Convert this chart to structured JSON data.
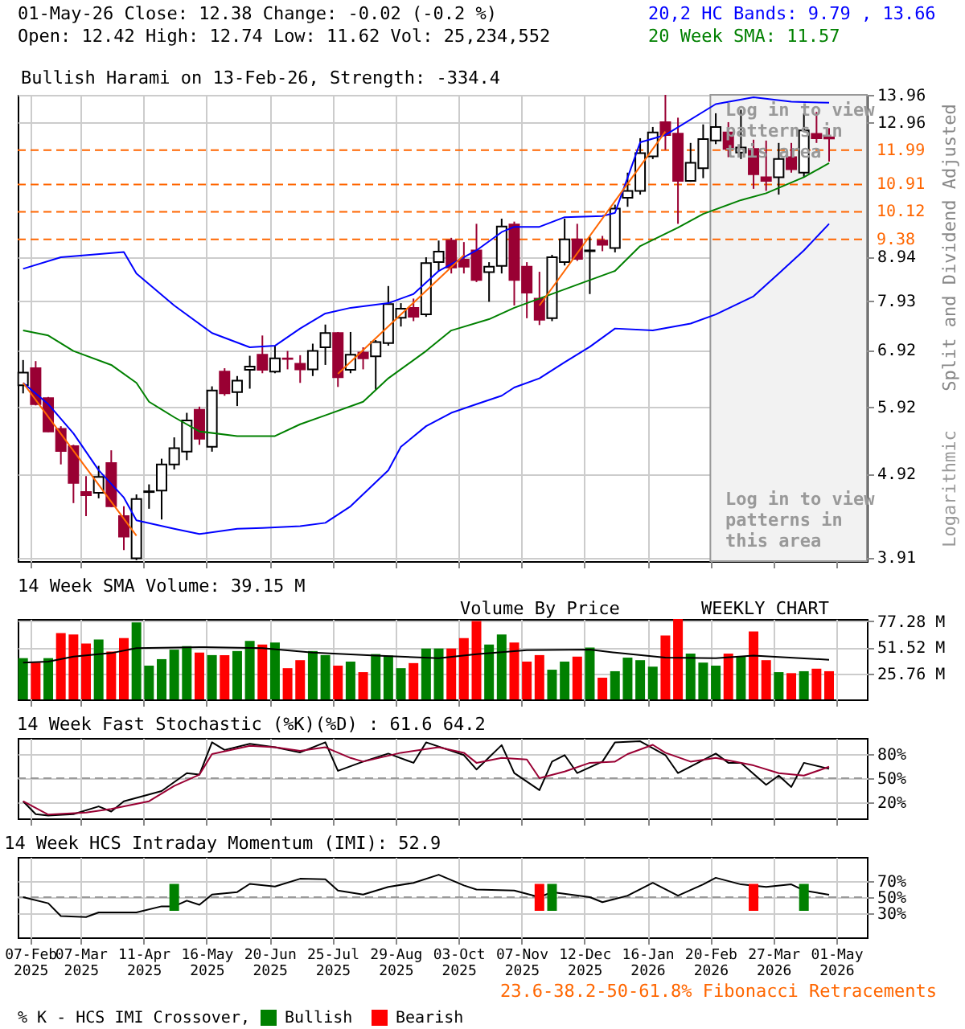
{
  "chart_data": [
    {
      "type": "candlestick",
      "title": "01-May-26   Close: 12.38   Change: -0.02 (-0.2 %)",
      "subtitle": "Open: 12.42   High: 12.74   Low: 11.62   Vol: 25,234,552",
      "ylabel": "Split and Dividend Adjusted",
      "annotations": [
        "20,2 HC Bands: 9.79 , 13.66",
        "20 Week SMA: 11.57",
        "Bullish Harami on 13-Feb-26, Strength: -334.4",
        "Log in to view patterns in this area",
        "Log in to view patterns in this area",
        "Logarithmic"
      ],
      "x": [
        "2025-02-03",
        "2025-02-10",
        "2025-02-17",
        "2025-02-24",
        "2025-03-03",
        "2025-03-10",
        "2025-03-17",
        "2025-03-24",
        "2025-03-31",
        "2025-04-07",
        "2025-04-14",
        "2025-04-21",
        "2025-04-28",
        "2025-05-05",
        "2025-05-12",
        "2025-05-19",
        "2025-05-26",
        "2025-06-02",
        "2025-06-09",
        "2025-06-16",
        "2025-06-23",
        "2025-06-30",
        "2025-07-07",
        "2025-07-14",
        "2025-07-21",
        "2025-07-28",
        "2025-08-04",
        "2025-08-11",
        "2025-08-18",
        "2025-08-25",
        "2025-09-01",
        "2025-09-08",
        "2025-09-15",
        "2025-09-22",
        "2025-09-29",
        "2025-10-06",
        "2025-10-13",
        "2025-10-20",
        "2025-10-27",
        "2025-11-03",
        "2025-11-10",
        "2025-11-17",
        "2025-11-24",
        "2025-12-01",
        "2025-12-08",
        "2025-12-15",
        "2025-12-22",
        "2025-12-29",
        "2026-01-05",
        "2026-01-12",
        "2026-01-19",
        "2026-01-26",
        "2026-02-02",
        "2026-02-09",
        "2026-02-16",
        "2026-02-23",
        "2026-03-02",
        "2026-03-09",
        "2026-03-16",
        "2026-03-23",
        "2026-03-30",
        "2026-04-06",
        "2026-04-13",
        "2026-04-20",
        "2026-04-27"
      ],
      "ohlc": [
        [
          6.28,
          6.73,
          6.14,
          6.5
        ],
        [
          6.58,
          6.71,
          5.94,
          5.96
        ],
        [
          6.06,
          6.08,
          5.52,
          5.53
        ],
        [
          5.57,
          5.61,
          5.05,
          5.24
        ],
        [
          5.31,
          5.33,
          4.54,
          4.8
        ],
        [
          4.68,
          4.89,
          4.38,
          4.64
        ],
        [
          4.67,
          5.03,
          4.6,
          4.88
        ],
        [
          5.07,
          5.25,
          4.49,
          4.5
        ],
        [
          4.38,
          4.5,
          3.99,
          4.14
        ],
        [
          3.9,
          4.65,
          3.88,
          4.59
        ],
        [
          4.68,
          4.78,
          4.47,
          4.69
        ],
        [
          4.7,
          5.13,
          4.34,
          5.05
        ],
        [
          5.05,
          5.44,
          4.98,
          5.28
        ],
        [
          5.23,
          5.82,
          5.11,
          5.7
        ],
        [
          5.87,
          5.92,
          5.33,
          5.42
        ],
        [
          5.3,
          6.26,
          5.23,
          6.19
        ],
        [
          6.52,
          6.58,
          6.1,
          6.14
        ],
        [
          6.16,
          6.44,
          5.93,
          6.36
        ],
        [
          6.55,
          6.81,
          6.22,
          6.61
        ],
        [
          6.83,
          7.2,
          6.49,
          6.55
        ],
        [
          6.52,
          7.0,
          6.49,
          6.76
        ],
        [
          6.76,
          6.9,
          6.56,
          6.75
        ],
        [
          6.66,
          6.82,
          6.32,
          6.56
        ],
        [
          6.56,
          7.04,
          6.44,
          6.9
        ],
        [
          6.97,
          7.42,
          6.64,
          7.25
        ],
        [
          7.25,
          7.27,
          6.25,
          6.42
        ],
        [
          6.55,
          7.27,
          6.49,
          6.83
        ],
        [
          6.87,
          6.97,
          6.56,
          6.76
        ],
        [
          6.8,
          7.11,
          6.2,
          7.07
        ],
        [
          7.05,
          8.25,
          7.0,
          7.85
        ],
        [
          7.56,
          7.87,
          7.38,
          7.75
        ],
        [
          7.77,
          7.97,
          7.49,
          7.58
        ],
        [
          7.63,
          8.93,
          7.58,
          8.79
        ],
        [
          8.81,
          9.35,
          8.6,
          9.07
        ],
        [
          9.35,
          9.42,
          8.54,
          8.68
        ],
        [
          8.87,
          9.31,
          8.54,
          8.7
        ],
        [
          9.1,
          9.79,
          8.34,
          8.39
        ],
        [
          8.57,
          8.81,
          7.9,
          8.7
        ],
        [
          8.72,
          9.93,
          8.54,
          9.72
        ],
        [
          9.77,
          9.85,
          7.82,
          8.39
        ],
        [
          8.7,
          8.81,
          7.55,
          8.1
        ],
        [
          7.97,
          8.58,
          7.41,
          7.52
        ],
        [
          7.55,
          8.99,
          7.49,
          8.93
        ],
        [
          8.81,
          9.93,
          8.73,
          9.38
        ],
        [
          9.38,
          9.79,
          8.84,
          8.89
        ],
        [
          9.08,
          9.45,
          8.07,
          9.1
        ],
        [
          9.35,
          9.47,
          9.08,
          9.24
        ],
        [
          9.16,
          10.32,
          9.05,
          10.21
        ],
        [
          10.52,
          11.27,
          10.26,
          10.72
        ],
        [
          10.72,
          12.39,
          10.61,
          11.89
        ],
        [
          11.79,
          12.78,
          11.7,
          12.59
        ],
        [
          12.95,
          13.96,
          12.0,
          12.5
        ],
        [
          12.55,
          13.11,
          9.79,
          11.02
        ],
        [
          11.02,
          12.23,
          10.99,
          11.58
        ],
        [
          11.41,
          12.87,
          11.1,
          12.36
        ],
        [
          12.31,
          13.27,
          12.19,
          12.78
        ],
        [
          12.59,
          12.95,
          11.76,
          12.03
        ],
        [
          11.91,
          13.4,
          11.7,
          12.08
        ],
        [
          12.03,
          12.34,
          10.78,
          11.22
        ],
        [
          11.13,
          12.31,
          10.72,
          11.02
        ],
        [
          11.13,
          12.23,
          10.61,
          11.7
        ],
        [
          11.76,
          12.23,
          11.27,
          11.38
        ],
        [
          11.27,
          13.27,
          11.13,
          12.66
        ],
        [
          12.54,
          13.32,
          12.23,
          12.39
        ],
        [
          12.42,
          12.74,
          11.62,
          12.38
        ]
      ],
      "series": [
        {
          "type": "line",
          "color": "#0000ff",
          "x": [
            "2025-02-03",
            "2025-02-24",
            "2025-03-31",
            "2025-04-07",
            "2025-04-28",
            "2025-05-19",
            "2025-06-09",
            "2025-06-23",
            "2025-07-07",
            "2025-07-21",
            "2025-08-04",
            "2025-08-25",
            "2025-09-08",
            "2025-09-22",
            "2025-10-13",
            "2025-10-27",
            "2025-11-03",
            "2025-11-17",
            "2025-12-01",
            "2025-12-22",
            "2025-12-29",
            "2026-01-12",
            "2026-01-26",
            "2026-02-23",
            "2026-03-16",
            "2026-04-06",
            "2026-04-27"
          ],
          "values": [
            8.65,
            8.93,
            9.06,
            8.54,
            7.82,
            7.25,
            6.97,
            7.0,
            7.34,
            7.65,
            7.77,
            7.87,
            8.07,
            8.6,
            9.1,
            9.57,
            9.71,
            9.71,
            9.97,
            10.0,
            10.09,
            12.25,
            12.5,
            13.61,
            13.87,
            13.7,
            13.66
          ]
        },
        {
          "type": "line",
          "color": "#0000ff",
          "x": [
            "2025-02-03",
            "2025-02-17",
            "2025-03-03",
            "2025-03-17",
            "2025-03-31",
            "2025-04-07",
            "2025-04-28",
            "2025-05-12",
            "2025-06-02",
            "2025-06-16",
            "2025-07-07",
            "2025-07-21",
            "2025-08-04",
            "2025-08-25",
            "2025-09-01",
            "2025-09-15",
            "2025-09-29",
            "2025-10-13",
            "2025-10-27",
            "2025-11-03",
            "2025-11-17",
            "2025-12-01",
            "2025-12-15",
            "2025-12-29",
            "2026-01-19",
            "2026-02-09",
            "2026-02-23",
            "2026-03-16",
            "2026-03-30",
            "2026-04-13",
            "2026-04-27"
          ],
          "values": [
            6.32,
            5.96,
            5.5,
            4.97,
            4.61,
            4.33,
            4.23,
            4.17,
            4.23,
            4.24,
            4.26,
            4.3,
            4.5,
            4.97,
            5.3,
            5.61,
            5.82,
            5.96,
            6.1,
            6.24,
            6.4,
            6.69,
            6.98,
            7.34,
            7.3,
            7.44,
            7.63,
            8.02,
            8.54,
            9.1,
            9.79
          ]
        },
        {
          "type": "line",
          "color": "#008000",
          "x": [
            "2025-02-03",
            "2025-02-17",
            "2025-03-03",
            "2025-03-24",
            "2025-04-07",
            "2025-04-14",
            "2025-04-28",
            "2025-05-12",
            "2025-06-02",
            "2025-06-23",
            "2025-07-07",
            "2025-07-21",
            "2025-08-11",
            "2025-08-25",
            "2025-09-15",
            "2025-09-29",
            "2025-10-20",
            "2025-11-03",
            "2025-11-17",
            "2025-12-08",
            "2025-12-29",
            "2026-01-12",
            "2026-02-02",
            "2026-02-16",
            "2026-03-09",
            "2026-03-23",
            "2026-04-13",
            "2026-04-27"
          ],
          "values": [
            7.3,
            7.2,
            6.9,
            6.64,
            6.32,
            6.0,
            5.75,
            5.53,
            5.46,
            5.46,
            5.64,
            5.78,
            6.0,
            6.4,
            6.9,
            7.3,
            7.53,
            7.77,
            7.97,
            8.28,
            8.6,
            9.21,
            9.69,
            10.06,
            10.45,
            10.65,
            11.13,
            11.57
          ]
        },
        {
          "type": "line",
          "color": "#ff6600",
          "x": [
            "2025-02-03",
            "2025-04-07"
          ],
          "values": [
            6.32,
            4.15
          ]
        },
        {
          "type": "line",
          "color": "#ff6600",
          "x": [
            "2025-07-28",
            "2025-10-06"
          ],
          "values": [
            6.48,
            8.98
          ]
        },
        {
          "type": "line",
          "color": "#ff6600",
          "x": [
            "2025-11-17",
            "2026-01-26"
          ],
          "values": [
            7.82,
            12.62
          ]
        }
      ],
      "ref_lines": [
        {
          "axis": "y",
          "value": 11.99,
          "label": "11.99",
          "color": "#ff6600",
          "line_style": "dashed"
        },
        {
          "axis": "y",
          "value": 10.91,
          "label": "10.91",
          "color": "#ff6600",
          "line_style": "dashed"
        },
        {
          "axis": "y",
          "value": 10.12,
          "label": "10.12",
          "color": "#ff6600",
          "line_style": "dashed"
        },
        {
          "axis": "y",
          "value": 9.38,
          "label": "9.38",
          "color": "#ff6600",
          "line_style": "dashed"
        }
      ],
      "bands": [
        {
          "axis": "x",
          "from": "2026-02-20",
          "to": "2026-05-18",
          "color": "#f2f2f2"
        }
      ],
      "xlim": [
        "2025-01-31",
        "2026-05-18"
      ],
      "xticks": [
        {
          "value": "2025-02-07",
          "label": null
        },
        {
          "value": "2025-03-07",
          "label": null
        },
        {
          "value": "2025-04-11",
          "label": null
        },
        {
          "value": "2025-05-16",
          "label": null
        },
        {
          "value": "2025-06-20",
          "label": null
        },
        {
          "value": "2025-07-25",
          "label": null
        },
        {
          "value": "2025-08-29",
          "label": null
        },
        {
          "value": "2025-10-03",
          "label": null
        },
        {
          "value": "2025-11-07",
          "label": null
        },
        {
          "value": "2025-12-12",
          "label": null
        },
        {
          "value": "2026-01-16",
          "label": null
        },
        {
          "value": "2026-02-20",
          "label": null
        },
        {
          "value": "2026-03-27",
          "label": null
        },
        {
          "value": "2026-05-01",
          "label": null
        }
      ],
      "ylim": [
        3.87,
        13.96
      ],
      "yticks": [
        3.91,
        4.92,
        5.92,
        6.92,
        7.93,
        8.94,
        12.96,
        13.96
      ],
      "log": "y",
      "grid": true,
      "tick_labels": "y"
    },
    {
      "type": "bar",
      "title": "14 Week SMA Volume: 39.15 M",
      "annotations": [
        "Volume By Price",
        "WEEKLY CHART"
      ],
      "series": [
        {
          "type": "bar",
          "x": [
            "2025-02-03",
            "2025-02-10",
            "2025-02-17",
            "2025-02-24",
            "2025-03-03",
            "2025-03-10",
            "2025-03-17",
            "2025-03-24",
            "2025-03-31",
            "2025-04-07",
            "2025-04-14",
            "2025-04-21",
            "2025-04-28",
            "2025-05-05",
            "2025-05-12",
            "2025-05-19",
            "2025-05-26",
            "2025-06-02",
            "2025-06-09",
            "2025-06-16",
            "2025-06-23",
            "2025-06-30",
            "2025-07-07",
            "2025-07-14",
            "2025-07-21",
            "2025-07-28",
            "2025-08-04",
            "2025-08-11",
            "2025-08-18",
            "2025-08-25",
            "2025-09-01",
            "2025-09-08",
            "2025-09-15",
            "2025-09-22",
            "2025-09-29",
            "2025-10-06",
            "2025-10-13",
            "2025-10-20",
            "2025-10-27",
            "2025-11-03",
            "2025-11-10",
            "2025-11-17",
            "2025-11-24",
            "2025-12-01",
            "2025-12-08",
            "2025-12-15",
            "2025-12-22",
            "2025-12-29",
            "2026-01-05",
            "2026-01-12",
            "2026-01-19",
            "2026-01-26",
            "2026-02-02",
            "2026-02-09",
            "2026-02-16",
            "2026-02-23",
            "2026-03-02",
            "2026-03-09",
            "2026-03-16",
            "2026-03-23",
            "2026-03-30",
            "2026-04-06",
            "2026-04-13",
            "2026-04-20",
            "2026-04-27"
          ],
          "values": [
            40.7,
            36.3,
            40.7,
            65.5,
            64.0,
            55.1,
            59.1,
            47.2,
            60.5,
            75.9,
            33.3,
            39.7,
            49.1,
            52.6,
            46.2,
            43.7,
            43.7,
            47.7,
            57.6,
            54.1,
            56.1,
            30.8,
            38.7,
            47.7,
            43.7,
            33.3,
            37.3,
            26.9,
            44.7,
            43.2,
            30.8,
            35.8,
            50.2,
            50.2,
            50.2,
            60.5,
            77.4,
            54.1,
            64.0,
            56.1,
            37.3,
            43.7,
            29.3,
            37.3,
            42.2,
            51.1,
            21.4,
            27.8,
            41.2,
            38.7,
            32.3,
            63.0,
            79.3,
            45.2,
            36.3,
            33.3,
            45.2,
            42.2,
            67.0,
            38.7,
            26.9,
            25.9,
            27.8,
            30.3,
            27.8
          ],
          "colors": [
            "#008000",
            "#ff0000",
            "#008000",
            "#ff0000",
            "#ff0000",
            "#ff0000",
            "#008000",
            "#ff0000",
            "#ff0000",
            "#008000",
            "#008000",
            "#008000",
            "#008000",
            "#008000",
            "#ff0000",
            "#008000",
            "#ff0000",
            "#008000",
            "#008000",
            "#ff0000",
            "#008000",
            "#ff0000",
            "#ff0000",
            "#008000",
            "#008000",
            "#ff0000",
            "#008000",
            "#ff0000",
            "#008000",
            "#008000",
            "#008000",
            "#ff0000",
            "#008000",
            "#008000",
            "#ff0000",
            "#ff0000",
            "#ff0000",
            "#008000",
            "#008000",
            "#ff0000",
            "#ff0000",
            "#ff0000",
            "#008000",
            "#008000",
            "#ff0000",
            "#008000",
            "#ff0000",
            "#008000",
            "#008000",
            "#008000",
            "#008000",
            "#ff0000",
            "#ff0000",
            "#008000",
            "#008000",
            "#008000",
            "#ff0000",
            "#008000",
            "#ff0000",
            "#ff0000",
            "#008000",
            "#ff0000",
            "#008000",
            "#ff0000",
            "#ff0000"
          ]
        },
        {
          "type": "line",
          "color": "#000000",
          "x": [
            "2025-02-03",
            "2025-02-17",
            "2025-03-03",
            "2025-03-24",
            "2025-04-07",
            "2025-05-12",
            "2025-06-16",
            "2025-07-14",
            "2025-08-18",
            "2025-09-22",
            "2025-10-13",
            "2025-11-10",
            "2025-12-15",
            "2025-12-29",
            "2026-01-26",
            "2026-02-23",
            "2026-03-16",
            "2026-04-27"
          ],
          "values": [
            36.3,
            37.3,
            42.2,
            45.7,
            50.6,
            51.6,
            50.6,
            46.2,
            43.2,
            40.7,
            44.7,
            48.6,
            49.1,
            46.2,
            41.2,
            40.7,
            43.2,
            39.15
          ]
        }
      ],
      "xlim": [
        "2025-01-31",
        "2026-05-18"
      ],
      "xticks": [
        {
          "value": "2025-02-07",
          "label": null
        },
        {
          "value": "2025-03-07",
          "label": null
        },
        {
          "value": "2025-04-11",
          "label": null
        },
        {
          "value": "2025-05-16",
          "label": null
        },
        {
          "value": "2025-06-20",
          "label": null
        },
        {
          "value": "2025-07-25",
          "label": null
        },
        {
          "value": "2025-08-29",
          "label": null
        },
        {
          "value": "2025-10-03",
          "label": null
        },
        {
          "value": "2025-11-07",
          "label": null
        },
        {
          "value": "2025-12-12",
          "label": null
        },
        {
          "value": "2026-01-16",
          "label": null
        },
        {
          "value": "2026-02-20",
          "label": null
        },
        {
          "value": "2026-03-27",
          "label": null
        },
        {
          "value": "2026-05-01",
          "label": null
        }
      ],
      "ylim": [
        0,
        79.3
      ],
      "yticks": [
        {
          "value": 25.76,
          "label": "25.76 M"
        },
        {
          "value": 51.52,
          "label": "51.52 M"
        },
        {
          "value": 77.28,
          "label": "77.28 M"
        }
      ],
      "grid": true,
      "tick_labels": "y"
    },
    {
      "type": "line",
      "title": "14 Week Fast Stochastic (%K)(%D) : 61.6 64.2",
      "series": [
        {
          "type": "line",
          "color": "#000000",
          "x": [
            "2025-02-03",
            "2025-02-10",
            "2025-02-17",
            "2025-03-03",
            "2025-03-17",
            "2025-03-24",
            "2025-03-31",
            "2025-04-21",
            "2025-05-05",
            "2025-05-12",
            "2025-05-19",
            "2025-05-26",
            "2025-06-09",
            "2025-06-23",
            "2025-07-07",
            "2025-07-21",
            "2025-07-28",
            "2025-08-11",
            "2025-08-25",
            "2025-09-08",
            "2025-09-15",
            "2025-10-06",
            "2025-10-13",
            "2025-10-27",
            "2025-11-03",
            "2025-11-17",
            "2025-11-24",
            "2025-12-01",
            "2025-12-08",
            "2025-12-22",
            "2025-12-29",
            "2026-01-12",
            "2026-01-26",
            "2026-02-02",
            "2026-02-23",
            "2026-03-02",
            "2026-03-09",
            "2026-03-23",
            "2026-03-30",
            "2026-04-06",
            "2026-04-13",
            "2026-04-27"
          ],
          "values": [
            21.3,
            5.3,
            3.4,
            5.3,
            14.9,
            8.5,
            21.3,
            34.0,
            56.3,
            54.4,
            94.6,
            85.1,
            92.8,
            88.4,
            82.1,
            94.6,
            59.1,
            70.6,
            80.6,
            69.1,
            94.6,
            78.7,
            60.8,
            91.1,
            56.3,
            35.1,
            70.6,
            78.7,
            56.3,
            70.6,
            94.6,
            95.9,
            78.7,
            56.3,
            80.6,
            69.1,
            69.1,
            41.7,
            53.2,
            39.1,
            69.1,
            61.6
          ]
        },
        {
          "type": "line",
          "color": "#990033",
          "x": [
            "2025-02-03",
            "2025-02-17",
            "2025-03-10",
            "2025-03-24",
            "2025-04-14",
            "2025-04-28",
            "2025-05-12",
            "2025-05-19",
            "2025-06-09",
            "2025-06-23",
            "2025-07-07",
            "2025-07-21",
            "2025-08-04",
            "2025-08-11",
            "2025-09-01",
            "2025-09-22",
            "2025-10-06",
            "2025-10-13",
            "2025-10-27",
            "2025-11-10",
            "2025-11-17",
            "2025-12-01",
            "2025-12-15",
            "2025-12-29",
            "2026-01-05",
            "2026-01-19",
            "2026-01-26",
            "2026-02-09",
            "2026-02-23",
            "2026-03-16",
            "2026-03-30",
            "2026-04-13",
            "2026-04-27"
          ],
          "values": [
            21.3,
            4.7,
            7.2,
            11.7,
            21.3,
            40.4,
            54.4,
            80.0,
            90.2,
            88.4,
            83.9,
            88.4,
            75.2,
            70.6,
            81.6,
            88.4,
            81.6,
            69.1,
            75.2,
            73.3,
            50.0,
            58.2,
            69.1,
            70.6,
            80.0,
            91.5,
            81.6,
            70.6,
            75.2,
            65.9,
            56.3,
            53.2,
            64.2
          ]
        }
      ],
      "ref_lines": [
        {
          "axis": "y",
          "value": 50,
          "color": "#999999",
          "line_style": "dashed"
        }
      ],
      "xlim": [
        "2025-01-31",
        "2026-05-18"
      ],
      "xticks": [
        {
          "value": "2025-02-07",
          "label": null
        },
        {
          "value": "2025-03-07",
          "label": null
        },
        {
          "value": "2025-04-11",
          "label": null
        },
        {
          "value": "2025-05-16",
          "label": null
        },
        {
          "value": "2025-06-20",
          "label": null
        },
        {
          "value": "2025-07-25",
          "label": null
        },
        {
          "value": "2025-08-29",
          "label": null
        },
        {
          "value": "2025-10-03",
          "label": null
        },
        {
          "value": "2025-11-07",
          "label": null
        },
        {
          "value": "2025-12-12",
          "label": null
        },
        {
          "value": "2026-01-16",
          "label": null
        },
        {
          "value": "2026-02-20",
          "label": null
        },
        {
          "value": "2026-03-27",
          "label": null
        },
        {
          "value": "2026-05-01",
          "label": null
        }
      ],
      "ylim": [
        0,
        100
      ],
      "yticks": [
        {
          "value": 20,
          "label": "20%"
        },
        {
          "value": 50,
          "label": "50%"
        },
        {
          "value": 80,
          "label": "80%"
        }
      ],
      "grid": true,
      "tick_labels": "y"
    },
    {
      "type": "line",
      "title": "14 Week HCS Intraday Momentum (IMI): 52.9",
      "legend_title": "% K - HCS IMI Crossover,",
      "annotations": [
        "23.6-38.2-50-61.8% Fibonacci Retracements"
      ],
      "series": [
        {
          "type": "line",
          "color": "#000000",
          "x": [
            "2025-02-03",
            "2025-02-17",
            "2025-02-24",
            "2025-03-10",
            "2025-03-17",
            "2025-04-07",
            "2025-04-21",
            "2025-04-28",
            "2025-05-05",
            "2025-05-12",
            "2025-05-19",
            "2025-06-02",
            "2025-06-09",
            "2025-06-23",
            "2025-07-07",
            "2025-07-21",
            "2025-07-28",
            "2025-08-11",
            "2025-08-25",
            "2025-09-08",
            "2025-09-22",
            "2025-10-06",
            "2025-10-13",
            "2025-11-03",
            "2025-11-17",
            "2025-11-24",
            "2025-12-15",
            "2025-12-22",
            "2026-01-05",
            "2026-01-19",
            "2026-02-02",
            "2026-02-16",
            "2026-02-23",
            "2026-03-09",
            "2026-03-23",
            "2026-04-06",
            "2026-04-13",
            "2026-04-27"
          ],
          "values": [
            50.0,
            42.4,
            26.5,
            25.2,
            31.0,
            31.0,
            38.6,
            38.6,
            45.6,
            40.5,
            53.2,
            56.3,
            66.5,
            63.3,
            72.9,
            72.2,
            58.3,
            53.2,
            62.7,
            67.8,
            77.9,
            64.6,
            59.5,
            58.3,
            50.0,
            56.3,
            50.0,
            43.7,
            51.9,
            67.8,
            51.9,
            65.9,
            74.1,
            65.9,
            62.7,
            65.9,
            58.3,
            52.9
          ]
        },
        {
          "type": "bar",
          "name": "Bullish",
          "color": "#008000",
          "x": [
            "2025-04-28",
            "2025-11-24",
            "2026-04-13"
          ],
          "base": [
            33,
            33,
            33
          ],
          "values": [
            33.5,
            33.5,
            33.5
          ]
        },
        {
          "type": "bar",
          "name": "Bearish",
          "color": "#ff0000",
          "x": [
            "2025-11-17",
            "2026-03-16"
          ],
          "base": [
            33,
            33
          ],
          "values": [
            33.5,
            33.5
          ]
        }
      ],
      "ref_lines": [
        {
          "axis": "y",
          "value": 50,
          "color": "#999999",
          "line_style": "dashed"
        }
      ],
      "xlim": [
        "2025-01-31",
        "2026-05-18"
      ],
      "xticks": [
        {
          "value": "2025-02-07",
          "label": "07-Feb 2025"
        },
        {
          "value": "2025-03-07",
          "label": "07-Mar 2025"
        },
        {
          "value": "2025-04-11",
          "label": "11-Apr 2025"
        },
        {
          "value": "2025-05-16",
          "label": "16-May 2025"
        },
        {
          "value": "2025-06-20",
          "label": "20-Jun 2025"
        },
        {
          "value": "2025-07-25",
          "label": "25-Jul 2025"
        },
        {
          "value": "2025-08-29",
          "label": "29-Aug 2025"
        },
        {
          "value": "2025-10-03",
          "label": "03-Oct 2025"
        },
        {
          "value": "2025-11-07",
          "label": "07-Nov 2025"
        },
        {
          "value": "2025-12-12",
          "label": "12-Dec 2025"
        },
        {
          "value": "2026-01-16",
          "label": "16-Jan 2026"
        },
        {
          "value": "2026-02-20",
          "label": "20-Feb 2026"
        },
        {
          "value": "2026-03-27",
          "label": "27-Mar 2026"
        },
        {
          "value": "2026-05-01",
          "label": "01-May 2026"
        }
      ],
      "ylim": [
        0,
        100
      ],
      "yticks": [
        {
          "value": 30,
          "label": "30%"
        },
        {
          "value": 50,
          "label": "50%"
        },
        {
          "value": 70,
          "label": "70%"
        }
      ],
      "grid": true,
      "legend": "bottom"
    }
  ]
}
